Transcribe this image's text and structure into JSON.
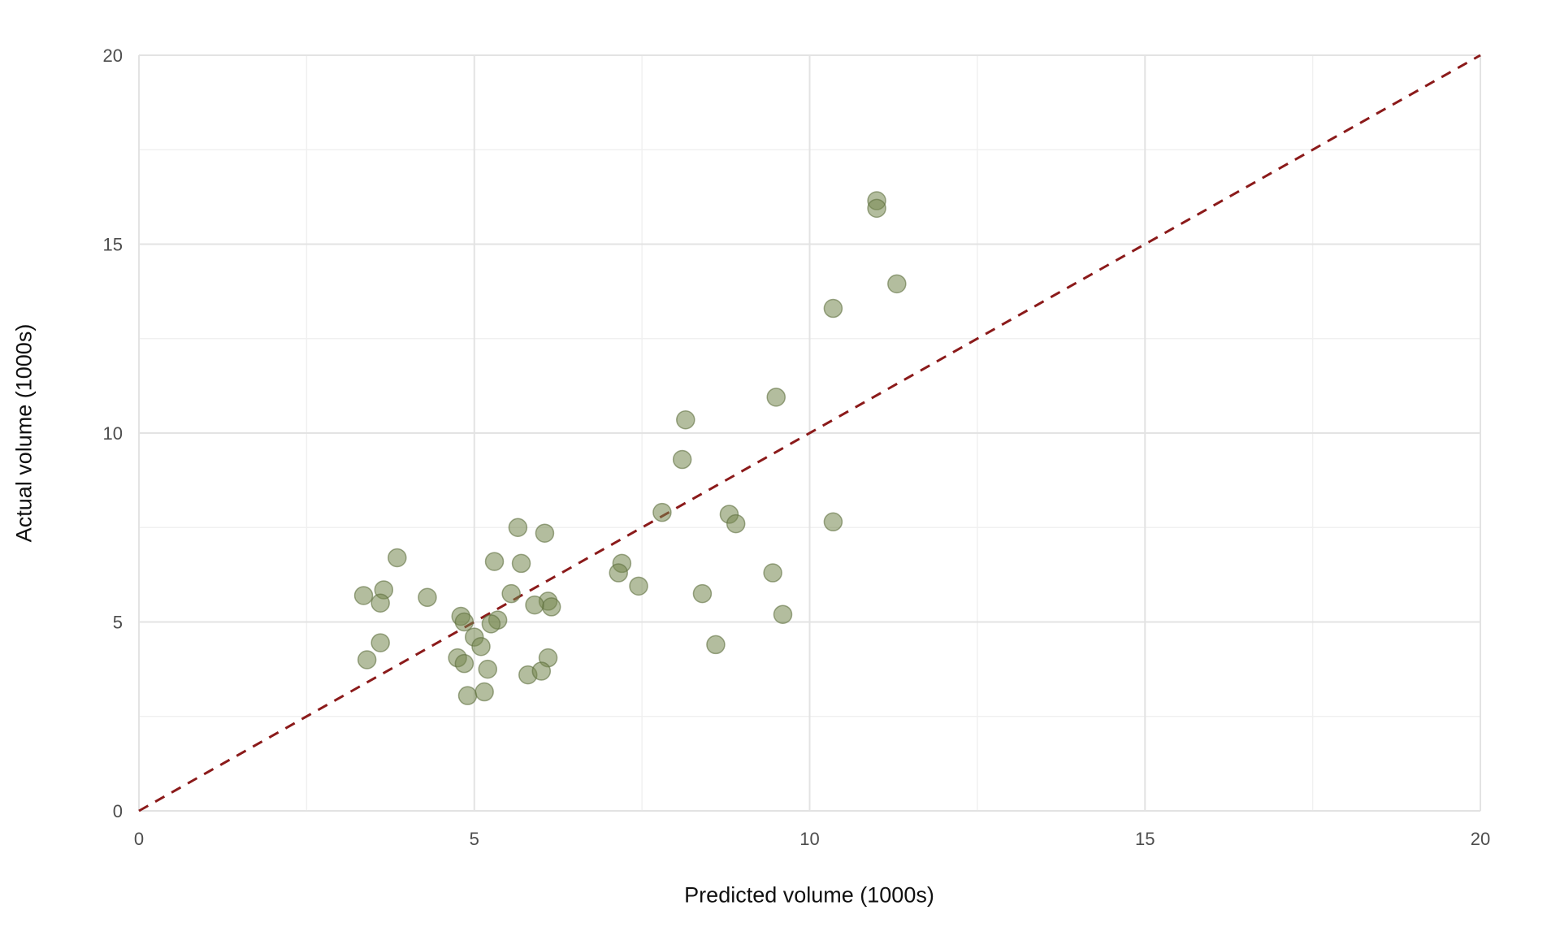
{
  "chart_data": {
    "type": "scatter",
    "title": "",
    "xlabel": "Predicted volume (1000s)",
    "ylabel": "Actual volume (1000s)",
    "xlim": [
      0,
      20
    ],
    "ylim": [
      0,
      20
    ],
    "xticks": [
      0,
      5,
      10,
      15,
      20
    ],
    "yticks": [
      0,
      5,
      10,
      15,
      20
    ],
    "minor_ticks": [
      2.5,
      7.5,
      12.5,
      17.5
    ],
    "grid": true,
    "legend": "none",
    "background": "#ffffff",
    "colors": {
      "grid_major": "#e3e3e3",
      "grid_minor": "#f0f0f0",
      "point_fill": "#75874e",
      "point_stroke": "#5f7040",
      "reference_line": "#8B1A1A",
      "tick_text": "#4d4d4d",
      "title_text": "#111111"
    },
    "point_opacity": 0.55,
    "point_radius": 11,
    "reference_line": {
      "style": "dashed",
      "from": [
        0,
        0
      ],
      "to": [
        20,
        20
      ],
      "meaning": "identity line (predicted = actual)"
    },
    "points": [
      [
        11.0,
        16.15
      ],
      [
        11.0,
        15.95
      ],
      [
        11.3,
        13.95
      ],
      [
        10.35,
        13.3
      ],
      [
        9.5,
        10.95
      ],
      [
        8.15,
        10.35
      ],
      [
        8.1,
        9.3
      ],
      [
        7.8,
        7.9
      ],
      [
        8.8,
        7.85
      ],
      [
        8.9,
        7.6
      ],
      [
        10.35,
        7.65
      ],
      [
        5.65,
        7.5
      ],
      [
        6.05,
        7.35
      ],
      [
        3.85,
        6.7
      ],
      [
        5.3,
        6.6
      ],
      [
        5.7,
        6.55
      ],
      [
        7.2,
        6.55
      ],
      [
        7.15,
        6.3
      ],
      [
        9.45,
        6.3
      ],
      [
        7.45,
        5.95
      ],
      [
        3.35,
        5.7
      ],
      [
        3.65,
        5.85
      ],
      [
        3.6,
        5.5
      ],
      [
        4.3,
        5.65
      ],
      [
        5.55,
        5.75
      ],
      [
        8.4,
        5.75
      ],
      [
        6.1,
        5.55
      ],
      [
        6.15,
        5.4
      ],
      [
        5.9,
        5.45
      ],
      [
        4.8,
        5.15
      ],
      [
        4.85,
        5.0
      ],
      [
        5.35,
        5.05
      ],
      [
        5.25,
        4.95
      ],
      [
        9.6,
        5.2
      ],
      [
        3.6,
        4.45
      ],
      [
        5.0,
        4.6
      ],
      [
        5.1,
        4.35
      ],
      [
        8.6,
        4.4
      ],
      [
        3.4,
        4.0
      ],
      [
        4.75,
        4.05
      ],
      [
        4.85,
        3.9
      ],
      [
        6.1,
        4.05
      ],
      [
        5.2,
        3.75
      ],
      [
        5.8,
        3.6
      ],
      [
        6.0,
        3.7
      ],
      [
        4.9,
        3.05
      ],
      [
        5.15,
        3.15
      ]
    ]
  }
}
